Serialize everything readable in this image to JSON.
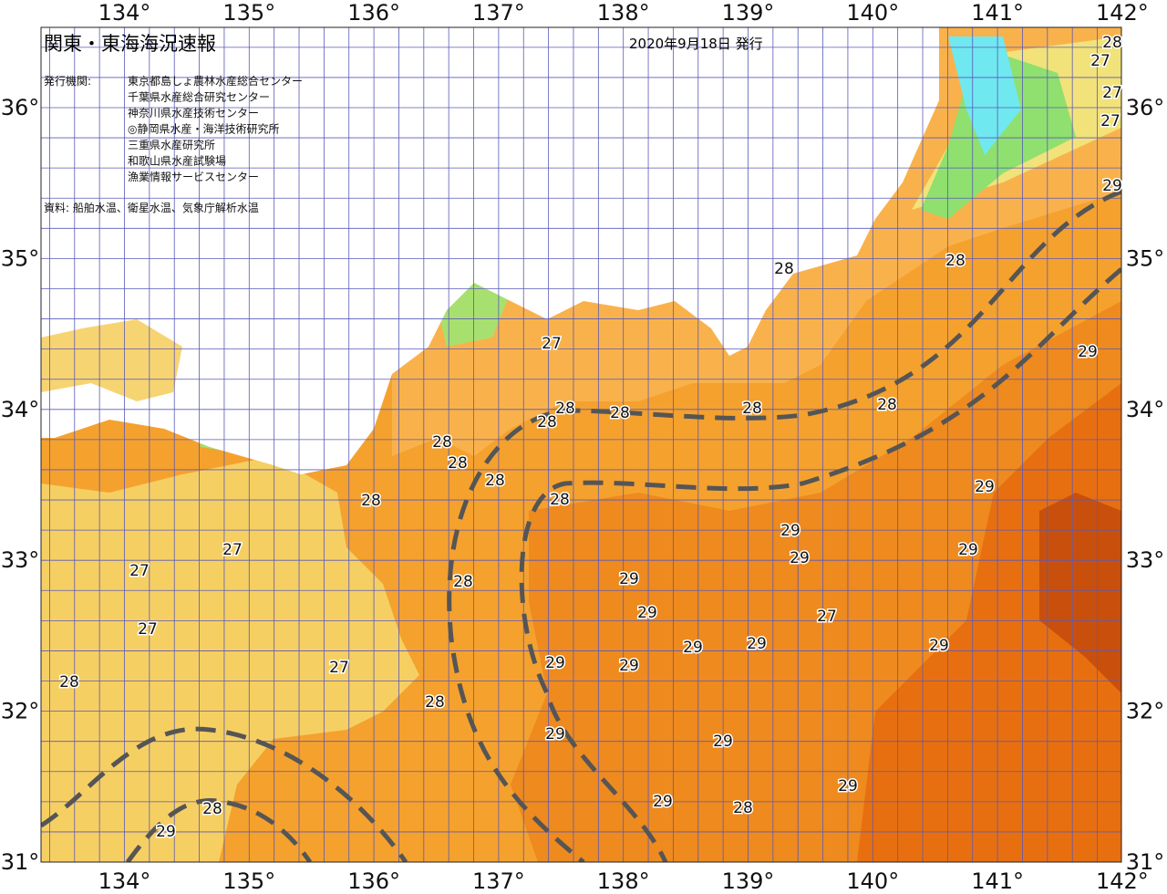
{
  "header": {
    "title": "関東・東海海況速報",
    "date": "2020年9月18日 発行"
  },
  "issuer": {
    "label": "発行機関:",
    "organizations": [
      "東京都島しょ農林水産総合センター",
      "千葉県水産総合研究センター",
      "神奈川県水産技術センター",
      "◎静岡県水産・海洋技術研究所",
      "三重県水産研究所",
      "和歌山県水産試験場",
      "漁業情報サービスセンター"
    ]
  },
  "source": "資料: 船舶水温、衛星水温、気象庁解析水温",
  "longitudes": [
    "134°",
    "135°",
    "136°",
    "137°",
    "138°",
    "139°",
    "140°",
    "141°",
    "142°"
  ],
  "latitudes": [
    "36°",
    "35°",
    "34°",
    "33°",
    "32°",
    "31°"
  ],
  "contour_labels": [
    28,
    27,
    27,
    27,
    28,
    27,
    28,
    28,
    28,
    28,
    28,
    28,
    28,
    28,
    28,
    28,
    28,
    28,
    29,
    29,
    29,
    29,
    29,
    29,
    29,
    29,
    29,
    29,
    29,
    29,
    29,
    29,
    29,
    29,
    29,
    28,
    27,
    27,
    27,
    27,
    27,
    28,
    28,
    28,
    29
  ]
}
